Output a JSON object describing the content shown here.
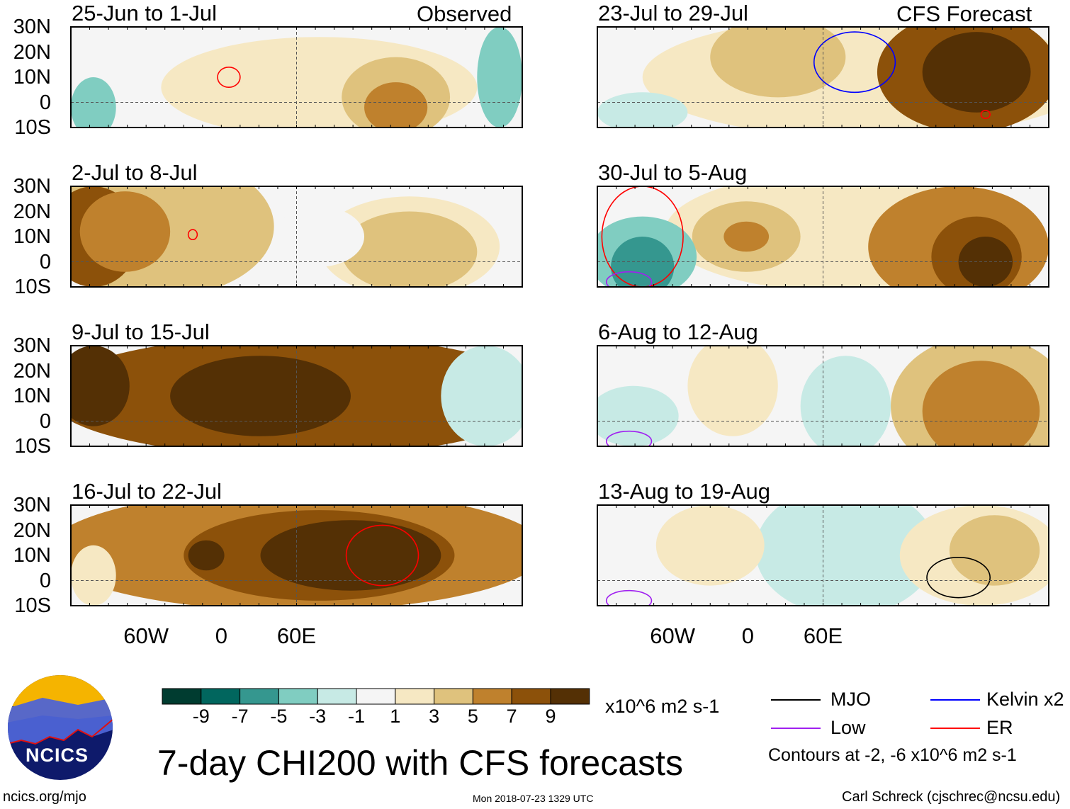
{
  "chart_data": {
    "type": "heatmap",
    "title": "7-day CHI200 with CFS forecasts",
    "units": "x10^6 m2 s-1",
    "lat_ticks": [
      "30N",
      "20N",
      "10N",
      "0",
      "10S"
    ],
    "lon_ticks": [
      "60W",
      "0",
      "60E"
    ],
    "ylim": [
      -10,
      30
    ],
    "colorbar": {
      "ticks": [
        "-9",
        "-7",
        "-5",
        "-3",
        "-1",
        "1",
        "3",
        "5",
        "7",
        "9"
      ],
      "colors": [
        "#003c30",
        "#01665e",
        "#35978f",
        "#80cdc1",
        "#c7eae5",
        "#f5f5f5",
        "#f6e8c3",
        "#dfc27d",
        "#bf812d",
        "#8c510a",
        "#543005"
      ]
    },
    "left_label": "Observed",
    "right_label": "CFS Forecast",
    "panels": [
      {
        "title": "25-Jun to 1-Jul",
        "column": "observed"
      },
      {
        "title": "2-Jul to 8-Jul",
        "column": "observed"
      },
      {
        "title": "9-Jul to 15-Jul",
        "column": "observed"
      },
      {
        "title": "16-Jul to 22-Jul",
        "column": "observed"
      },
      {
        "title": "23-Jul to 29-Jul",
        "column": "forecast"
      },
      {
        "title": "30-Jul to 5-Aug",
        "column": "forecast"
      },
      {
        "title": "6-Aug to 12-Aug",
        "column": "forecast"
      },
      {
        "title": "13-Aug to 19-Aug",
        "column": "forecast"
      }
    ],
    "legend": {
      "items": [
        {
          "label": "MJO",
          "color": "#000000"
        },
        {
          "label": "Kelvin x2",
          "color": "#0000ff"
        },
        {
          "label": "Low",
          "color": "#a020f0"
        },
        {
          "label": "ER",
          "color": "#ff0000"
        }
      ],
      "note": "Contours at -2, -6 x10^6 m2 s-1"
    }
  },
  "footer": {
    "logo_text": "NCICS",
    "url": "ncics.org/mjo",
    "timestamp": "Mon 2018-07-23 1329 UTC",
    "author": "Carl Schreck (cjschrec@ncsu.edu)"
  }
}
